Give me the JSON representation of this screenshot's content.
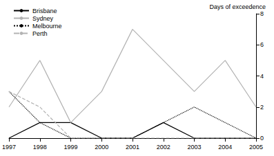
{
  "chart_data": {
    "type": "line",
    "y_label": "Days of exceedence",
    "categories": [
      "1997",
      "1998",
      "1999",
      "2000",
      "2001",
      "2002",
      "2003",
      "2004",
      "2005"
    ],
    "series": [
      {
        "name": "Brisbane",
        "color": "#000000",
        "line_style": "solid",
        "values": [
          0,
          1,
          1,
          0,
          0,
          1,
          0,
          0,
          0
        ]
      },
      {
        "name": "Sydney",
        "color": "#b3b3b3",
        "line_style": "solid",
        "values": [
          2,
          5,
          1,
          3,
          7,
          5,
          3,
          5,
          2
        ]
      },
      {
        "name": "Melbourne",
        "color": "#000000",
        "line_style": "dotted",
        "values": [
          3,
          1,
          0,
          0,
          0,
          1,
          2,
          1,
          0
        ]
      },
      {
        "name": "Perth",
        "color": "#b3b3b3",
        "line_style": "dashed",
        "values": [
          3,
          2,
          0,
          0,
          0,
          0,
          0,
          0,
          0
        ]
      }
    ],
    "ylim": [
      0,
      8
    ],
    "yticks": [
      0,
      2,
      4,
      6,
      8
    ],
    "legend": "top-left",
    "grid": false
  }
}
